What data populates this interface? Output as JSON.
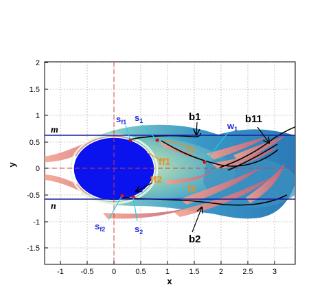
{
  "axes": {
    "x_title": "x",
    "y_title": "y",
    "x_ticks": [
      "-1",
      "-0.5",
      "0",
      "0.5",
      "1",
      "1.5",
      "2",
      "2.5",
      "3"
    ],
    "y_ticks": [
      "2",
      "1.5",
      "1",
      "0.5",
      "0",
      "-0.5",
      "-1",
      "-1.5"
    ]
  },
  "annotations": {
    "m": "m",
    "n": "n",
    "b1": "b1",
    "b11": "b11",
    "b2": "b2",
    "w1": "w",
    "w1_sub": "1",
    "s1": "s",
    "s1_sub": "1",
    "sf1": "s",
    "sf1_sub": "f1",
    "s2": "s",
    "s2_sub": "2",
    "sf2": "s",
    "sf2_sub": "f2",
    "f1": "f1",
    "f2": "f2",
    "ff1": "ff1",
    "ff2": "ff2"
  },
  "colors": {
    "cylinder": "#0a12ee",
    "wake_outer": "#2e8dc8",
    "wake_mid": "#5bb9c9",
    "wake_inner": "#a8d6b4",
    "shear_layer": "#e88a7d",
    "line_mn": "#1a1aa0",
    "centerline": "#d04040",
    "point": "#d01010",
    "pointer_cyan": "#19d0e8"
  }
}
